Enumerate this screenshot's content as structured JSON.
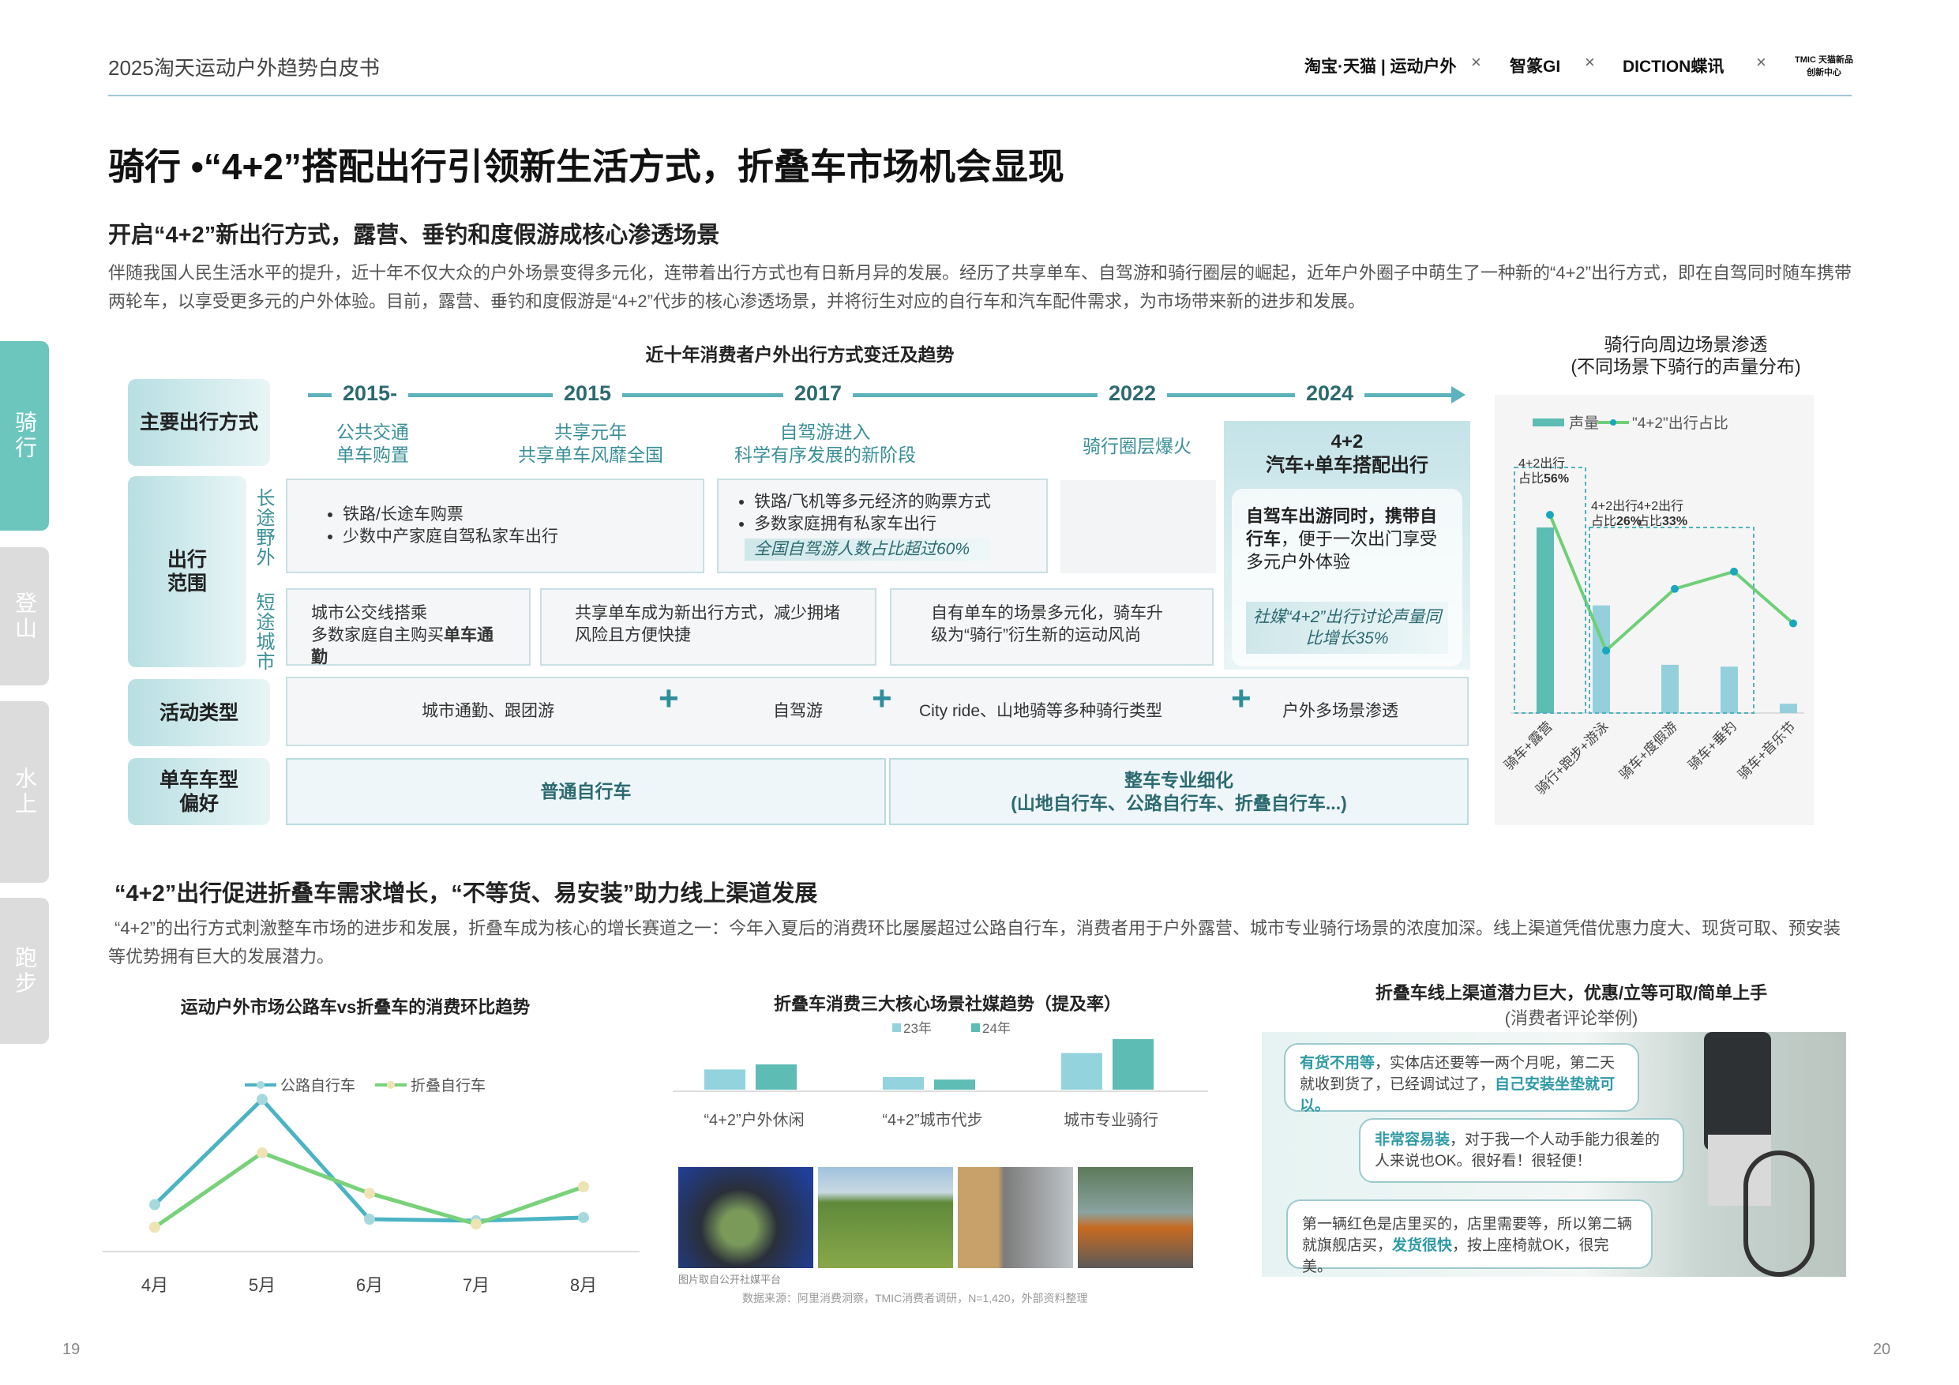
{
  "header": {
    "title": "2025淘天运动户外趋势白皮书",
    "logos": [
      "淘宝·天猫 | 运动户外",
      "智篆GI",
      "DICTION蝶讯",
      "TMIC 天猫新品创新中心"
    ],
    "separator": "×"
  },
  "nav": [
    {
      "label": "骑行",
      "active": true
    },
    {
      "label": "登山",
      "active": false
    },
    {
      "label": "水上",
      "active": false
    },
    {
      "label": "跑步",
      "active": false
    }
  ],
  "title": "骑行 •“4+2”搭配出行引领新生活方式，折叠车市场机会显现",
  "section1": {
    "heading": "开启“4+2”新出行方式，露营、垂钓和度假游成核心渗透场景",
    "body": "伴随我国人民生活水平的提升，近十年不仅大众的户外场景变得多元化，连带着出行方式也有日新月异的发展。经历了共享单车、自驾游和骑行圈层的崛起，近年户外圈子中萌生了一种新的“4+2”出行方式，即在自驾同时随车携带两轮车，以享受更多元的户外体验。目前，露营、垂钓和度假游是“4+2”代步的核心渗透场景，并将衍生对应的自行车和汽车配件需求，为市场带来新的进步和发展。"
  },
  "timeline": {
    "title": "近十年消费者户外出行方式变迁及趋势",
    "row_labels": {
      "mode": "主要出行方式",
      "range": "出行范围",
      "long": "长途野外",
      "short": "短途城市",
      "activity": "活动类型",
      "bike": "单车车型偏好"
    },
    "years": [
      "2015-",
      "2015",
      "2017",
      "2022",
      "2024"
    ],
    "modes": [
      [
        "公共交通",
        "单车购置"
      ],
      [
        "共享元年",
        "共享单车风靡全国"
      ],
      [
        "自驾游进入",
        "科学有序发展的新阶段"
      ],
      [
        "骑行圈层爆火"
      ],
      [
        "4+2",
        "汽车+单车搭配出行"
      ]
    ],
    "long": {
      "a": [
        "铁路/长途车购票",
        "少数中产家庭自驾私家车出行"
      ],
      "b": [
        "铁路/飞机等多元经济的购票方式",
        "多数家庭拥有私家车出行"
      ],
      "b_note": "全国自驾游人数占比超过60%"
    },
    "short": {
      "a1": "城市公交线搭乘",
      "a2": "多数家庭自主购买",
      "a2_bold": "单车通勤",
      "b": "共享单车成为新出行方式，减少拥堵风险且方便快捷",
      "c": "自有单车的场景多元化，骑车升级为“骑行”衍生新的运动风尚"
    },
    "y2024": {
      "bold": "自驾车出游同时，携带自行车",
      "text": "，便于一次出门享受多元户外体验",
      "note": "社媒“4+2”出行讨论声量同比增长35%"
    },
    "activities": [
      "城市通勤、跟团游",
      "自驾游",
      "City ride、山地骑等多种骑行类型",
      "户外多场景渗透"
    ],
    "bikes": {
      "a": "普通自行车",
      "b1": "整车专业细化",
      "b2": "(山地自行车、公路自行车、折叠自行车...)"
    }
  },
  "chart_data": [
    {
      "type": "bar+line",
      "title": "骑行向周边场景渗透",
      "subtitle": "(不同场景下骑行的声量分布)",
      "categories": [
        "骑车+露营",
        "骑行+跑步+游泳",
        "骑车+度假游",
        "骑车+垂钓",
        "骑车+音乐节"
      ],
      "series": [
        {
          "name": "声量",
          "type": "bar",
          "values": [
            100,
            58,
            26,
            25,
            5
          ],
          "colors": [
            "#5dbcb4",
            "#93d0dc",
            "#93d0dc",
            "#93d0dc",
            "#93d0dc"
          ]
        },
        {
          "name": "\"4+2\"出行占比",
          "type": "line",
          "values": [
            56,
            1,
            26,
            33,
            12
          ],
          "color": "#6fcf77",
          "marker": "#19a7bf"
        }
      ],
      "annotations": [
        {
          "label1": "4+2出行",
          "label2": "占比",
          "value": "56%"
        },
        {
          "label1": "4+2出行",
          "label2": "占比",
          "value": "26%"
        },
        {
          "label1": "4+2出行",
          "label2": "占比",
          "value": "33%"
        }
      ],
      "legend": "top",
      "grid": false
    },
    {
      "type": "line",
      "title": "运动户外市场公路车vs折叠车的消费环比趋势",
      "categories": [
        "4月",
        "5月",
        "6月",
        "7月",
        "8月"
      ],
      "series": [
        {
          "name": "公路自行车",
          "values": [
            29,
            94,
            20,
            19,
            21
          ],
          "color": "#4bb3c4"
        },
        {
          "name": "折叠自行车",
          "values": [
            15,
            61,
            36,
            17,
            40
          ],
          "color": "#78d27a"
        }
      ],
      "legend": "top",
      "grid": false
    },
    {
      "type": "bar",
      "title": "折叠车消费三大核心场景社媒趋势（提及率）",
      "categories": [
        "“4+2”户外休闲",
        "“4+2”城市代步",
        "城市专业骑行"
      ],
      "series": [
        {
          "name": "23年",
          "values": [
            16,
            10,
            29
          ],
          "color": "#93d3de"
        },
        {
          "name": "24年",
          "values": [
            20,
            8,
            40
          ],
          "color": "#5dbcb4"
        }
      ],
      "legend": "top",
      "grid": false
    }
  ],
  "section2": {
    "heading": "“4+2”出行促进折叠车需求增长，“不等货、易安装”助力线上渠道发展",
    "body": "“4+2”的出行方式刺激整车市场的进步和发展，折叠车成为核心的增长赛道之一：今年入夏后的消费环比屡屡超过公路自行车，消费者用于户外露营、城市专业骑行场景的浓度加深。线上渠道凭借优惠力度大、现货可取、预安装等优势拥有巨大的发展潜力。"
  },
  "photos": {
    "caption": "图片取自公开社媒平台",
    "source": "数据来源：阿里消费洞察，TMIC消费者调研，N=1,420，外部资料整理"
  },
  "reviews": {
    "title": "折叠车线上渠道潜力巨大，优惠/立等可取/简单上手",
    "subtitle": "(消费者评论举例)",
    "items": [
      {
        "b1": "有货不用等",
        "t1": "，实体店还要等一两个月呢，第二天就收到货了，已经调试过了，",
        "b2": "自己安装坐垫就可以。",
        "t2": ""
      },
      {
        "b1": "非常容易装",
        "t1": "，对于我一个人动手能力很差的人来说也OK。很好看！很轻便！",
        "b2": "",
        "t2": ""
      },
      {
        "b1": "",
        "t1": "第一辆红色是店里买的，店里需要等，所以第二辆就旗舰店买，",
        "b2": "发货很快",
        "t2": "，按上座椅就OK，很完美。"
      }
    ]
  },
  "page_numbers": {
    "left": "19",
    "right": "20"
  }
}
